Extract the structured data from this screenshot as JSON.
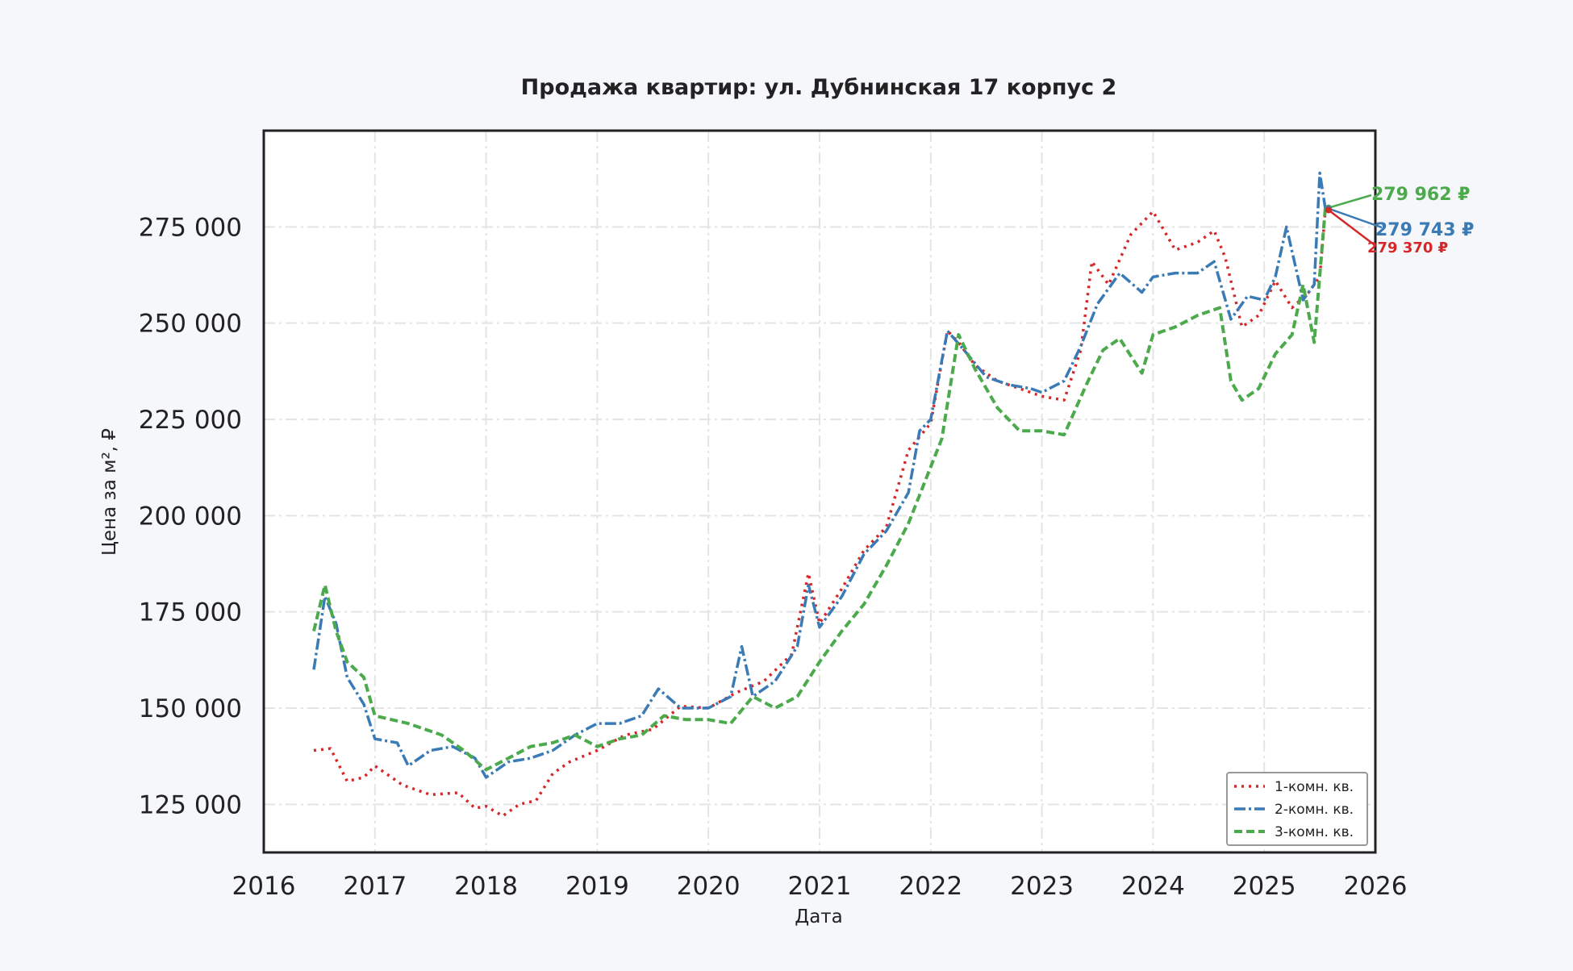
{
  "chart_data": {
    "type": "line",
    "title": "Продажа квартир: ул. Дубнинская 17 корпус 2",
    "xlabel": "Дата",
    "ylabel": "Цена за м², ₽",
    "xlim": [
      2016.0,
      2026.0
    ],
    "ylim": [
      112500,
      300000
    ],
    "x_ticks": [
      "2016",
      "2017",
      "2018",
      "2019",
      "2020",
      "2021",
      "2022",
      "2023",
      "2024",
      "2025",
      "2026"
    ],
    "y_ticks": [
      {
        "value": 125000,
        "label": "125 000"
      },
      {
        "value": 150000,
        "label": "150 000"
      },
      {
        "value": 175000,
        "label": "175 000"
      },
      {
        "value": 200000,
        "label": "200 000"
      },
      {
        "value": 225000,
        "label": "225 000"
      },
      {
        "value": 250000,
        "label": "250 000"
      },
      {
        "value": 275000,
        "label": "275 000"
      }
    ],
    "grid": true,
    "legend_position": "bottom-right",
    "series": [
      {
        "name": "1-комн. кв.",
        "color": "#d62728",
        "style": "dotted",
        "x": [
          2016.45,
          2016.6,
          2016.75,
          2016.9,
          2017.0,
          2017.25,
          2017.5,
          2017.75,
          2017.9,
          2018.0,
          2018.15,
          2018.3,
          2018.45,
          2018.6,
          2018.75,
          2019.0,
          2019.25,
          2019.5,
          2019.75,
          2020.0,
          2020.25,
          2020.5,
          2020.75,
          2020.9,
          2021.0,
          2021.2,
          2021.4,
          2021.6,
          2021.8,
          2022.0,
          2022.15,
          2022.25,
          2022.4,
          2022.6,
          2022.8,
          2023.0,
          2023.2,
          2023.35,
          2023.45,
          2023.6,
          2023.8,
          2024.0,
          2024.2,
          2024.4,
          2024.55,
          2024.65,
          2024.8,
          2024.95,
          2025.1,
          2025.25,
          2025.4,
          2025.5,
          2025.55
        ],
        "y": [
          139000,
          139500,
          131000,
          132000,
          135000,
          130000,
          127500,
          128000,
          124000,
          124500,
          122000,
          125000,
          126000,
          133000,
          136000,
          139000,
          143000,
          144500,
          150500,
          150000,
          154000,
          157000,
          164000,
          185000,
          172000,
          181000,
          191000,
          197000,
          217000,
          224000,
          248000,
          245000,
          239000,
          235000,
          233000,
          231000,
          230000,
          243000,
          266000,
          260000,
          273000,
          279000,
          269000,
          271000,
          274000,
          267000,
          249000,
          252000,
          261000,
          254000,
          258000,
          262000,
          279370
        ]
      },
      {
        "name": "2-комн. кв.",
        "color": "#3a7ab5",
        "style": "dashdot",
        "x": [
          2016.45,
          2016.55,
          2016.65,
          2016.75,
          2016.9,
          2017.0,
          2017.2,
          2017.3,
          2017.5,
          2017.7,
          2017.9,
          2018.0,
          2018.2,
          2018.4,
          2018.6,
          2018.8,
          2019.0,
          2019.2,
          2019.4,
          2019.55,
          2019.75,
          2020.0,
          2020.2,
          2020.3,
          2020.4,
          2020.6,
          2020.8,
          2020.9,
          2021.0,
          2021.2,
          2021.4,
          2021.6,
          2021.8,
          2021.9,
          2022.0,
          2022.15,
          2022.3,
          2022.5,
          2022.7,
          2022.9,
          2023.0,
          2023.2,
          2023.35,
          2023.5,
          2023.7,
          2023.9,
          2024.0,
          2024.2,
          2024.4,
          2024.55,
          2024.7,
          2024.85,
          2025.0,
          2025.1,
          2025.2,
          2025.35,
          2025.45,
          2025.5,
          2025.55
        ],
        "y": [
          160000,
          179000,
          172000,
          158000,
          151000,
          142000,
          141000,
          135000,
          139000,
          140000,
          137000,
          132000,
          136000,
          137000,
          139000,
          143000,
          146000,
          146000,
          148000,
          155000,
          150000,
          150000,
          153000,
          166000,
          153000,
          157000,
          166000,
          182000,
          171000,
          179000,
          190000,
          196000,
          206000,
          222000,
          225000,
          248000,
          243000,
          236000,
          234000,
          233000,
          232000,
          235000,
          244000,
          255000,
          263000,
          258000,
          262000,
          263000,
          263000,
          266000,
          251000,
          257000,
          256000,
          262000,
          275000,
          256000,
          260000,
          289000,
          279743
        ]
      },
      {
        "name": "3-комн. кв.",
        "color": "#4caa4c",
        "style": "dashed",
        "x": [
          2016.45,
          2016.55,
          2016.65,
          2016.75,
          2016.9,
          2017.0,
          2017.3,
          2017.6,
          2017.8,
          2018.0,
          2018.2,
          2018.4,
          2018.6,
          2018.8,
          2019.0,
          2019.2,
          2019.4,
          2019.6,
          2019.8,
          2020.0,
          2020.2,
          2020.4,
          2020.6,
          2020.8,
          2021.0,
          2021.2,
          2021.4,
          2021.6,
          2021.8,
          2021.95,
          2022.1,
          2022.25,
          2022.4,
          2022.6,
          2022.8,
          2023.0,
          2023.2,
          2023.4,
          2023.55,
          2023.7,
          2023.9,
          2024.0,
          2024.2,
          2024.4,
          2024.6,
          2024.7,
          2024.8,
          2024.95,
          2025.1,
          2025.25,
          2025.35,
          2025.45,
          2025.55
        ],
        "y": [
          170000,
          182000,
          170000,
          162000,
          158000,
          148000,
          146000,
          143000,
          139000,
          134000,
          137000,
          140000,
          141000,
          143000,
          140000,
          142000,
          143000,
          148000,
          147000,
          147000,
          146000,
          153000,
          150000,
          153000,
          162000,
          170000,
          177000,
          187000,
          198000,
          209000,
          220000,
          247000,
          238000,
          228000,
          222000,
          222000,
          221000,
          234000,
          243000,
          246000,
          237000,
          247000,
          249000,
          252000,
          254000,
          235000,
          230000,
          233000,
          242000,
          247000,
          260000,
          245000,
          279962
        ]
      }
    ],
    "annotations": [
      {
        "series": "3-комн. кв.",
        "label": "279 962 ₽",
        "value": 279962
      },
      {
        "series": "2-комн. кв.",
        "label": "279 743 ₽",
        "value": 279743
      },
      {
        "series": "1-комн. кв.",
        "label": "279 370 ₽",
        "value": 279370
      }
    ]
  }
}
